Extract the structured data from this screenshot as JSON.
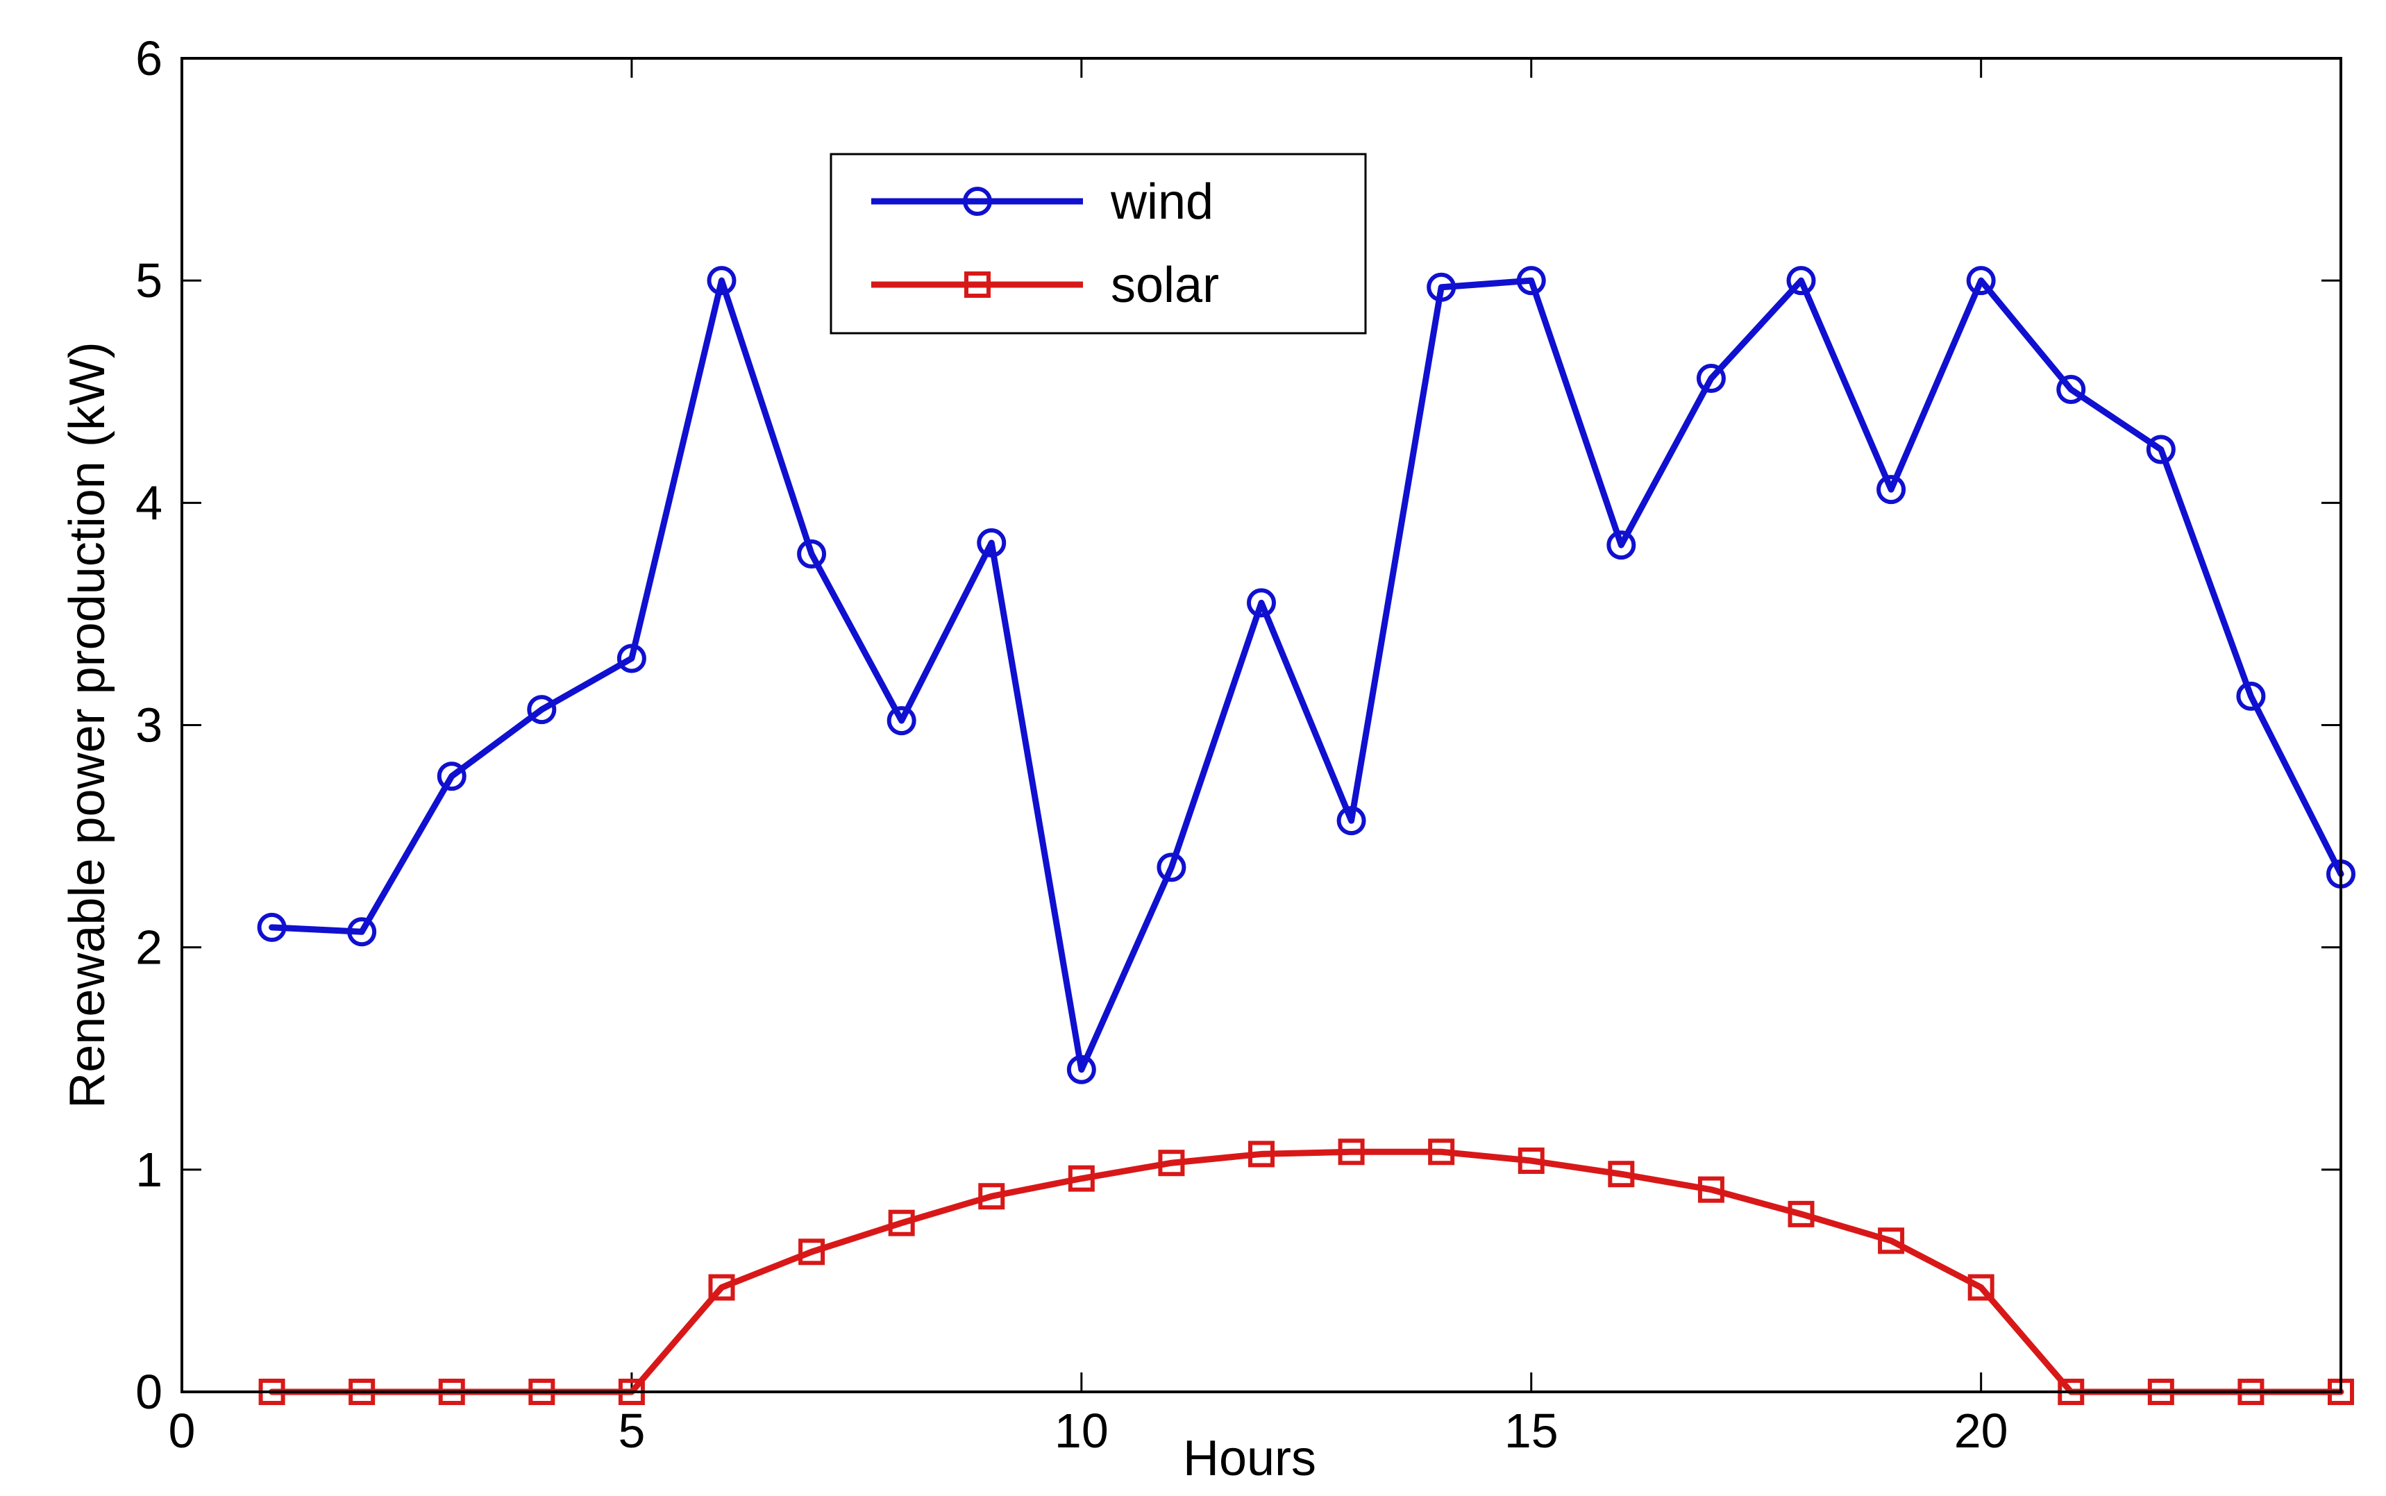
{
  "chart_data": {
    "type": "line",
    "title": "",
    "xlabel": "Hours",
    "ylabel": "Renewable power production (kW)",
    "xlim": [
      0,
      24
    ],
    "ylim": [
      0,
      6
    ],
    "xticks": [
      0,
      5,
      10,
      15,
      20
    ],
    "yticks": [
      0,
      1,
      2,
      3,
      4,
      5,
      6
    ],
    "grid": false,
    "legend_position": "top-center",
    "x": [
      1,
      2,
      3,
      4,
      5,
      6,
      7,
      8,
      9,
      10,
      11,
      12,
      13,
      14,
      15,
      16,
      17,
      18,
      19,
      20,
      21,
      22,
      23,
      24
    ],
    "series": [
      {
        "name": "wind",
        "color": "#1010d0",
        "marker": "circle",
        "values": [
          2.09,
          2.07,
          2.77,
          3.07,
          3.3,
          5.0,
          3.77,
          3.02,
          3.82,
          1.45,
          2.36,
          3.55,
          2.57,
          4.97,
          5.0,
          3.81,
          4.56,
          5.0,
          4.06,
          5.0,
          4.51,
          4.24,
          3.13,
          2.33
        ]
      },
      {
        "name": "solar",
        "color": "#d81818",
        "marker": "square",
        "values": [
          0,
          0,
          0,
          0,
          0,
          0.47,
          0.63,
          0.76,
          0.88,
          0.96,
          1.03,
          1.07,
          1.08,
          1.08,
          1.04,
          0.98,
          0.91,
          0.8,
          0.68,
          0.47,
          0,
          0,
          0,
          0
        ]
      }
    ]
  }
}
